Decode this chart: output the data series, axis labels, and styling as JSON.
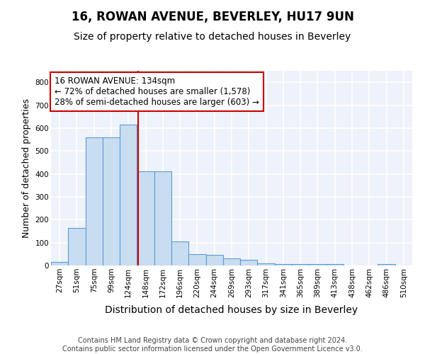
{
  "title1": "16, ROWAN AVENUE, BEVERLEY, HU17 9UN",
  "title2": "Size of property relative to detached houses in Beverley",
  "xlabel": "Distribution of detached houses by size in Beverley",
  "ylabel": "Number of detached properties",
  "footer": "Contains HM Land Registry data © Crown copyright and database right 2024.\nContains public sector information licensed under the Open Government Licence v3.0.",
  "bar_labels": [
    "27sqm",
    "51sqm",
    "75sqm",
    "99sqm",
    "124sqm",
    "148sqm",
    "172sqm",
    "196sqm",
    "220sqm",
    "244sqm",
    "269sqm",
    "293sqm",
    "317sqm",
    "341sqm",
    "365sqm",
    "389sqm",
    "413sqm",
    "438sqm",
    "462sqm",
    "486sqm",
    "510sqm"
  ],
  "bar_heights": [
    15,
    165,
    560,
    560,
    615,
    410,
    410,
    105,
    50,
    45,
    30,
    25,
    10,
    5,
    5,
    5,
    5,
    0,
    0,
    5,
    0
  ],
  "bar_color": "#c9ddf0",
  "bar_edge_color": "#5b9bd5",
  "ylim": [
    0,
    850
  ],
  "yticks": [
    0,
    100,
    200,
    300,
    400,
    500,
    600,
    700,
    800
  ],
  "red_line_x": 4.55,
  "annotation_text": "16 ROWAN AVENUE: 134sqm\n← 72% of detached houses are smaller (1,578)\n28% of semi-detached houses are larger (603) →",
  "annotation_box_color": "#ffffff",
  "annotation_box_edge": "#cc0000",
  "background_color": "#eef2fa",
  "grid_color": "#ffffff",
  "title1_fontsize": 12,
  "title2_fontsize": 10,
  "xlabel_fontsize": 10,
  "ylabel_fontsize": 9,
  "annotation_fontsize": 8.5,
  "footer_fontsize": 7,
  "tick_fontsize": 7.5
}
